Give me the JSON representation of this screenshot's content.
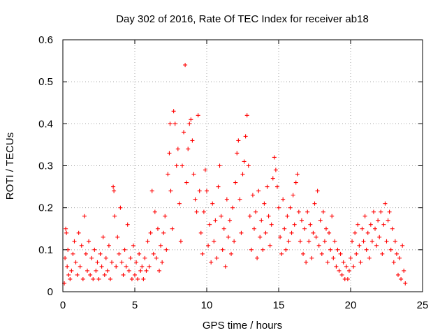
{
  "chart_data": {
    "type": "scatter",
    "title": "Day 302 of 2016, Rate Of TEC Index for receiver ab18",
    "xlabel": "GPS time / hours",
    "ylabel": "ROTI / TECUs",
    "xlim": [
      0,
      25
    ],
    "ylim": [
      0,
      0.6
    ],
    "xticks": [
      0,
      5,
      10,
      15,
      20,
      25
    ],
    "xtick_labels": [
      "0",
      "5",
      "10",
      "15",
      "20",
      "25"
    ],
    "yticks": [
      0,
      0.1,
      0.2,
      0.3,
      0.4,
      0.5,
      0.6
    ],
    "ytick_labels": [
      "0",
      "0.1",
      "0.2",
      "0.3",
      "0.4",
      "0.5",
      "0.6"
    ],
    "grid": true,
    "marker": "+",
    "color": "#ff0000",
    "series": [
      {
        "name": "ROTI",
        "points": [
          [
            0.1,
            0.02
          ],
          [
            0.15,
            0.08
          ],
          [
            0.2,
            0.15
          ],
          [
            0.25,
            0.14
          ],
          [
            0.3,
            0.06
          ],
          [
            0.35,
            0.1
          ],
          [
            0.4,
            0.04
          ],
          [
            0.5,
            0.03
          ],
          [
            0.6,
            0.05
          ],
          [
            0.7,
            0.09
          ],
          [
            0.8,
            0.12
          ],
          [
            0.9,
            0.07
          ],
          [
            1.0,
            0.04
          ],
          [
            1.1,
            0.14
          ],
          [
            1.2,
            0.06
          ],
          [
            1.3,
            0.11
          ],
          [
            1.4,
            0.03
          ],
          [
            1.5,
            0.18
          ],
          [
            1.6,
            0.09
          ],
          [
            1.7,
            0.05
          ],
          [
            1.8,
            0.12
          ],
          [
            1.9,
            0.04
          ],
          [
            2.0,
            0.08
          ],
          [
            2.1,
            0.03
          ],
          [
            2.2,
            0.1
          ],
          [
            2.3,
            0.05
          ],
          [
            2.4,
            0.07
          ],
          [
            2.5,
            0.03
          ],
          [
            2.6,
            0.09
          ],
          [
            2.7,
            0.06
          ],
          [
            2.8,
            0.13
          ],
          [
            2.9,
            0.04
          ],
          [
            3.0,
            0.08
          ],
          [
            3.1,
            0.05
          ],
          [
            3.2,
            0.11
          ],
          [
            3.3,
            0.03
          ],
          [
            3.4,
            0.07
          ],
          [
            3.5,
            0.25
          ],
          [
            3.55,
            0.24
          ],
          [
            3.6,
            0.18
          ],
          [
            3.7,
            0.06
          ],
          [
            3.8,
            0.13
          ],
          [
            3.9,
            0.09
          ],
          [
            4.0,
            0.2
          ],
          [
            4.1,
            0.07
          ],
          [
            4.2,
            0.04
          ],
          [
            4.3,
            0.1
          ],
          [
            4.4,
            0.06
          ],
          [
            4.5,
            0.16
          ],
          [
            4.6,
            0.05
          ],
          [
            4.7,
            0.08
          ],
          [
            4.8,
            0.03
          ],
          [
            4.9,
            0.11
          ],
          [
            5.0,
            0.04
          ],
          [
            5.1,
            0.07
          ],
          [
            5.2,
            0.03
          ],
          [
            5.3,
            0.09
          ],
          [
            5.4,
            0.05
          ],
          [
            5.5,
            0.06
          ],
          [
            5.6,
            0.03
          ],
          [
            5.7,
            0.08
          ],
          [
            5.8,
            0.05
          ],
          [
            5.9,
            0.12
          ],
          [
            6.0,
            0.06
          ],
          [
            6.1,
            0.14
          ],
          [
            6.2,
            0.24
          ],
          [
            6.3,
            0.09
          ],
          [
            6.4,
            0.19
          ],
          [
            6.5,
            0.08
          ],
          [
            6.6,
            0.15
          ],
          [
            6.7,
            0.05
          ],
          [
            6.8,
            0.11
          ],
          [
            6.9,
            0.07
          ],
          [
            7.0,
            0.14
          ],
          [
            7.1,
            0.18
          ],
          [
            7.2,
            0.1
          ],
          [
            7.3,
            0.28
          ],
          [
            7.4,
            0.33
          ],
          [
            7.45,
            0.4
          ],
          [
            7.5,
            0.24
          ],
          [
            7.6,
            0.15
          ],
          [
            7.7,
            0.43
          ],
          [
            7.8,
            0.4
          ],
          [
            7.9,
            0.3
          ],
          [
            8.0,
            0.34
          ],
          [
            8.1,
            0.21
          ],
          [
            8.2,
            0.12
          ],
          [
            8.3,
            0.3
          ],
          [
            8.4,
            0.38
          ],
          [
            8.5,
            0.54
          ],
          [
            8.6,
            0.26
          ],
          [
            8.7,
            0.34
          ],
          [
            8.8,
            0.4
          ],
          [
            8.9,
            0.41
          ],
          [
            9.0,
            0.36
          ],
          [
            9.1,
            0.28
          ],
          [
            9.2,
            0.22
          ],
          [
            9.3,
            0.19
          ],
          [
            9.4,
            0.42
          ],
          [
            9.5,
            0.24
          ],
          [
            9.6,
            0.14
          ],
          [
            9.7,
            0.09
          ],
          [
            9.8,
            0.19
          ],
          [
            9.9,
            0.29
          ],
          [
            10.0,
            0.24
          ],
          [
            10.1,
            0.11
          ],
          [
            10.2,
            0.16
          ],
          [
            10.3,
            0.07
          ],
          [
            10.4,
            0.21
          ],
          [
            10.5,
            0.12
          ],
          [
            10.6,
            0.17
          ],
          [
            10.7,
            0.08
          ],
          [
            10.8,
            0.25
          ],
          [
            10.9,
            0.3
          ],
          [
            11.0,
            0.18
          ],
          [
            11.1,
            0.1
          ],
          [
            11.2,
            0.15
          ],
          [
            11.3,
            0.06
          ],
          [
            11.4,
            0.22
          ],
          [
            11.5,
            0.13
          ],
          [
            11.6,
            0.17
          ],
          [
            11.7,
            0.09
          ],
          [
            11.8,
            0.2
          ],
          [
            11.9,
            0.12
          ],
          [
            12.0,
            0.26
          ],
          [
            12.1,
            0.33
          ],
          [
            12.2,
            0.36
          ],
          [
            12.3,
            0.22
          ],
          [
            12.4,
            0.14
          ],
          [
            12.5,
            0.28
          ],
          [
            12.6,
            0.31
          ],
          [
            12.7,
            0.37
          ],
          [
            12.8,
            0.42
          ],
          [
            12.9,
            0.3
          ],
          [
            13.0,
            0.18
          ],
          [
            13.1,
            0.1
          ],
          [
            13.2,
            0.23
          ],
          [
            13.3,
            0.15
          ],
          [
            13.4,
            0.19
          ],
          [
            13.5,
            0.08
          ],
          [
            13.6,
            0.24
          ],
          [
            13.7,
            0.13
          ],
          [
            13.8,
            0.17
          ],
          [
            13.9,
            0.1
          ],
          [
            14.0,
            0.21
          ],
          [
            14.1,
            0.14
          ],
          [
            14.2,
            0.25
          ],
          [
            14.3,
            0.18
          ],
          [
            14.4,
            0.11
          ],
          [
            14.5,
            0.16
          ],
          [
            14.6,
            0.27
          ],
          [
            14.7,
            0.32
          ],
          [
            14.8,
            0.29
          ],
          [
            14.9,
            0.25
          ],
          [
            15.0,
            0.2
          ],
          [
            15.1,
            0.13
          ],
          [
            15.2,
            0.09
          ],
          [
            15.3,
            0.22
          ],
          [
            15.4,
            0.15
          ],
          [
            15.5,
            0.1
          ],
          [
            15.6,
            0.18
          ],
          [
            15.7,
            0.12
          ],
          [
            15.8,
            0.2
          ],
          [
            15.9,
            0.14
          ],
          [
            16.0,
            0.23
          ],
          [
            16.1,
            0.16
          ],
          [
            16.2,
            0.26
          ],
          [
            16.3,
            0.28
          ],
          [
            16.4,
            0.19
          ],
          [
            16.5,
            0.12
          ],
          [
            16.6,
            0.17
          ],
          [
            16.7,
            0.09
          ],
          [
            16.8,
            0.15
          ],
          [
            16.9,
            0.07
          ],
          [
            17.0,
            0.19
          ],
          [
            17.1,
            0.12
          ],
          [
            17.2,
            0.16
          ],
          [
            17.3,
            0.08
          ],
          [
            17.4,
            0.14
          ],
          [
            17.5,
            0.21
          ],
          [
            17.6,
            0.13
          ],
          [
            17.7,
            0.24
          ],
          [
            17.8,
            0.11
          ],
          [
            17.9,
            0.17
          ],
          [
            18.0,
            0.09
          ],
          [
            18.1,
            0.19
          ],
          [
            18.2,
            0.12
          ],
          [
            18.3,
            0.15
          ],
          [
            18.4,
            0.07
          ],
          [
            18.5,
            0.14
          ],
          [
            18.6,
            0.1
          ],
          [
            18.7,
            0.18
          ],
          [
            18.8,
            0.08
          ],
          [
            18.9,
            0.12
          ],
          [
            19.0,
            0.06
          ],
          [
            19.1,
            0.1
          ],
          [
            19.2,
            0.05
          ],
          [
            19.3,
            0.09
          ],
          [
            19.4,
            0.04
          ],
          [
            19.5,
            0.07
          ],
          [
            19.6,
            0.03
          ],
          [
            19.7,
            0.06
          ],
          [
            19.8,
            0.03
          ],
          [
            19.9,
            0.05
          ],
          [
            20.0,
            0.08
          ],
          [
            20.1,
            0.12
          ],
          [
            20.2,
            0.06
          ],
          [
            20.3,
            0.14
          ],
          [
            20.4,
            0.09
          ],
          [
            20.5,
            0.16
          ],
          [
            20.6,
            0.11
          ],
          [
            20.7,
            0.07
          ],
          [
            20.8,
            0.15
          ],
          [
            20.9,
            0.12
          ],
          [
            21.0,
            0.18
          ],
          [
            21.1,
            0.1
          ],
          [
            21.2,
            0.14
          ],
          [
            21.3,
            0.08
          ],
          [
            21.4,
            0.16
          ],
          [
            21.5,
            0.12
          ],
          [
            21.6,
            0.19
          ],
          [
            21.7,
            0.15
          ],
          [
            21.8,
            0.11
          ],
          [
            21.9,
            0.17
          ],
          [
            22.0,
            0.13
          ],
          [
            22.1,
            0.19
          ],
          [
            22.2,
            0.09
          ],
          [
            22.3,
            0.16
          ],
          [
            22.4,
            0.21
          ],
          [
            22.5,
            0.12
          ],
          [
            22.6,
            0.17
          ],
          [
            22.7,
            0.19
          ],
          [
            22.8,
            0.1
          ],
          [
            22.9,
            0.15
          ],
          [
            23.0,
            0.07
          ],
          [
            23.1,
            0.12
          ],
          [
            23.2,
            0.09
          ],
          [
            23.3,
            0.04
          ],
          [
            23.4,
            0.08
          ],
          [
            23.5,
            0.03
          ],
          [
            23.6,
            0.11
          ],
          [
            23.7,
            0.05
          ],
          [
            23.8,
            0.02
          ]
        ]
      }
    ]
  }
}
